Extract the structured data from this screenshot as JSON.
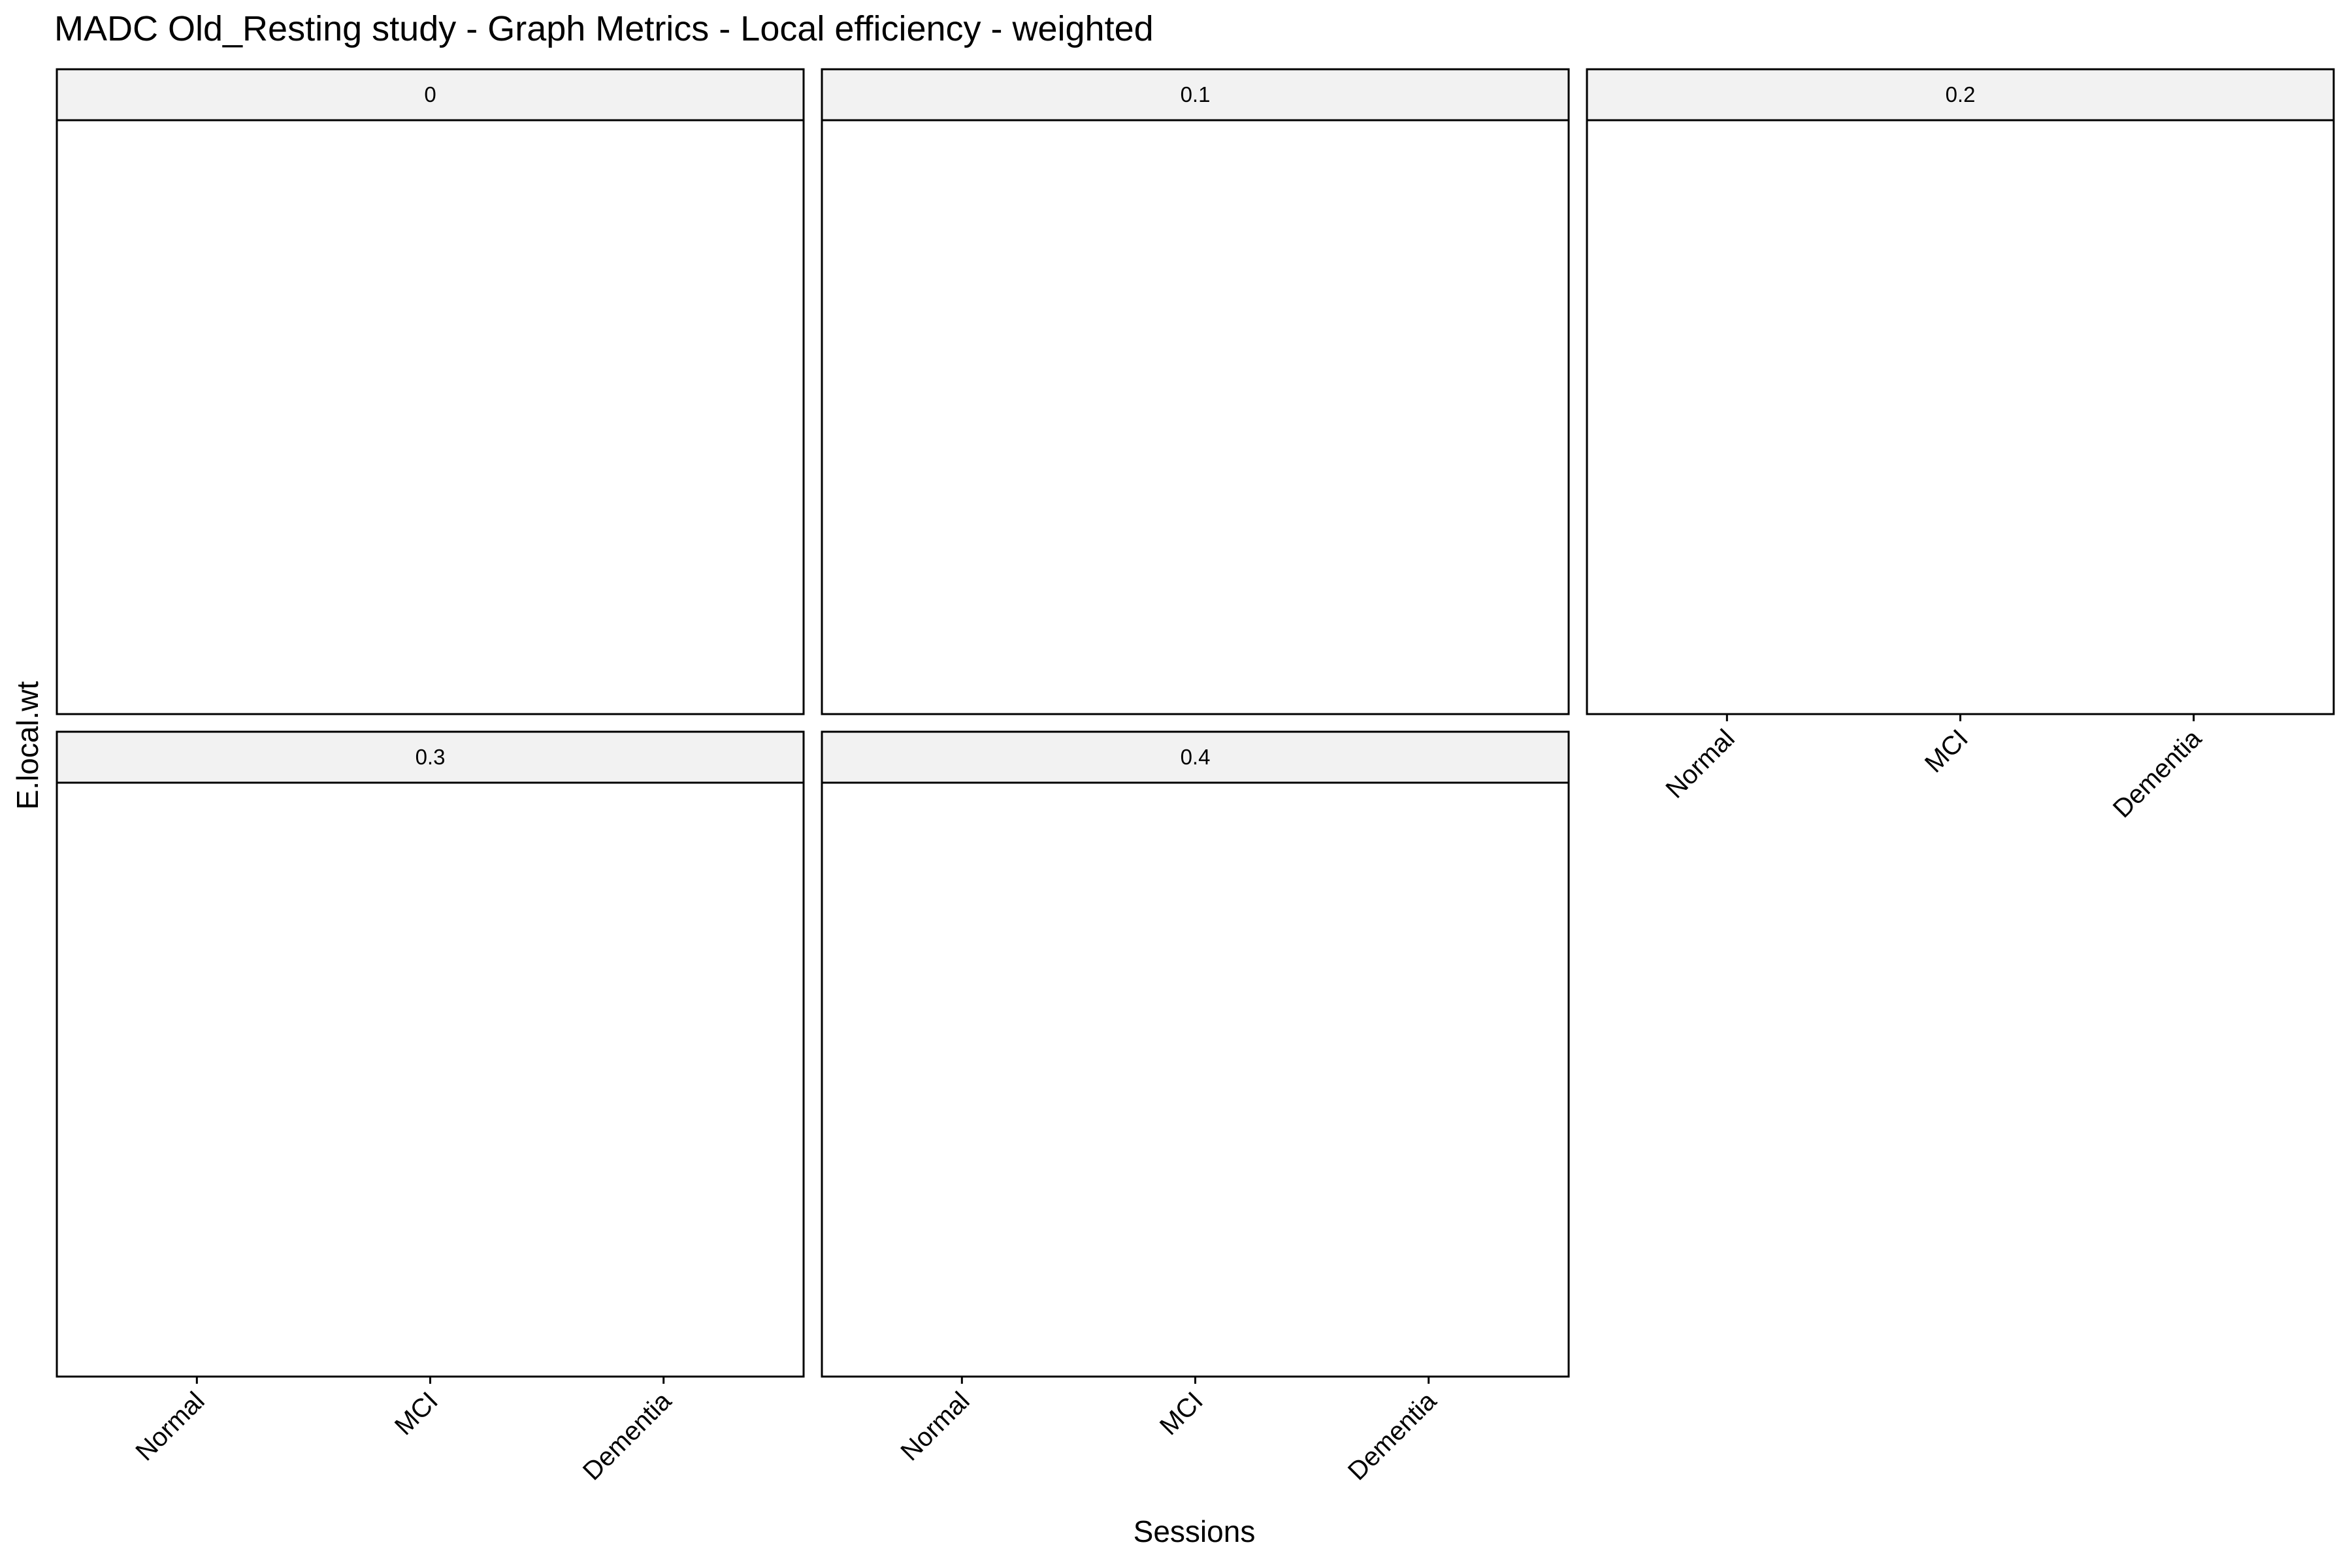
{
  "chart_data": {
    "type": "bar",
    "title": "MADC Old_Resting study - Graph Metrics -  Local efficiency - weighted",
    "x_label": "Sessions",
    "y_label": "E.local.wt",
    "categories": [
      "Normal",
      "MCI",
      "Dementia"
    ],
    "panels": [
      "0",
      "0.1",
      "0.2",
      "0.3",
      "0.4"
    ],
    "columns": 3
  }
}
